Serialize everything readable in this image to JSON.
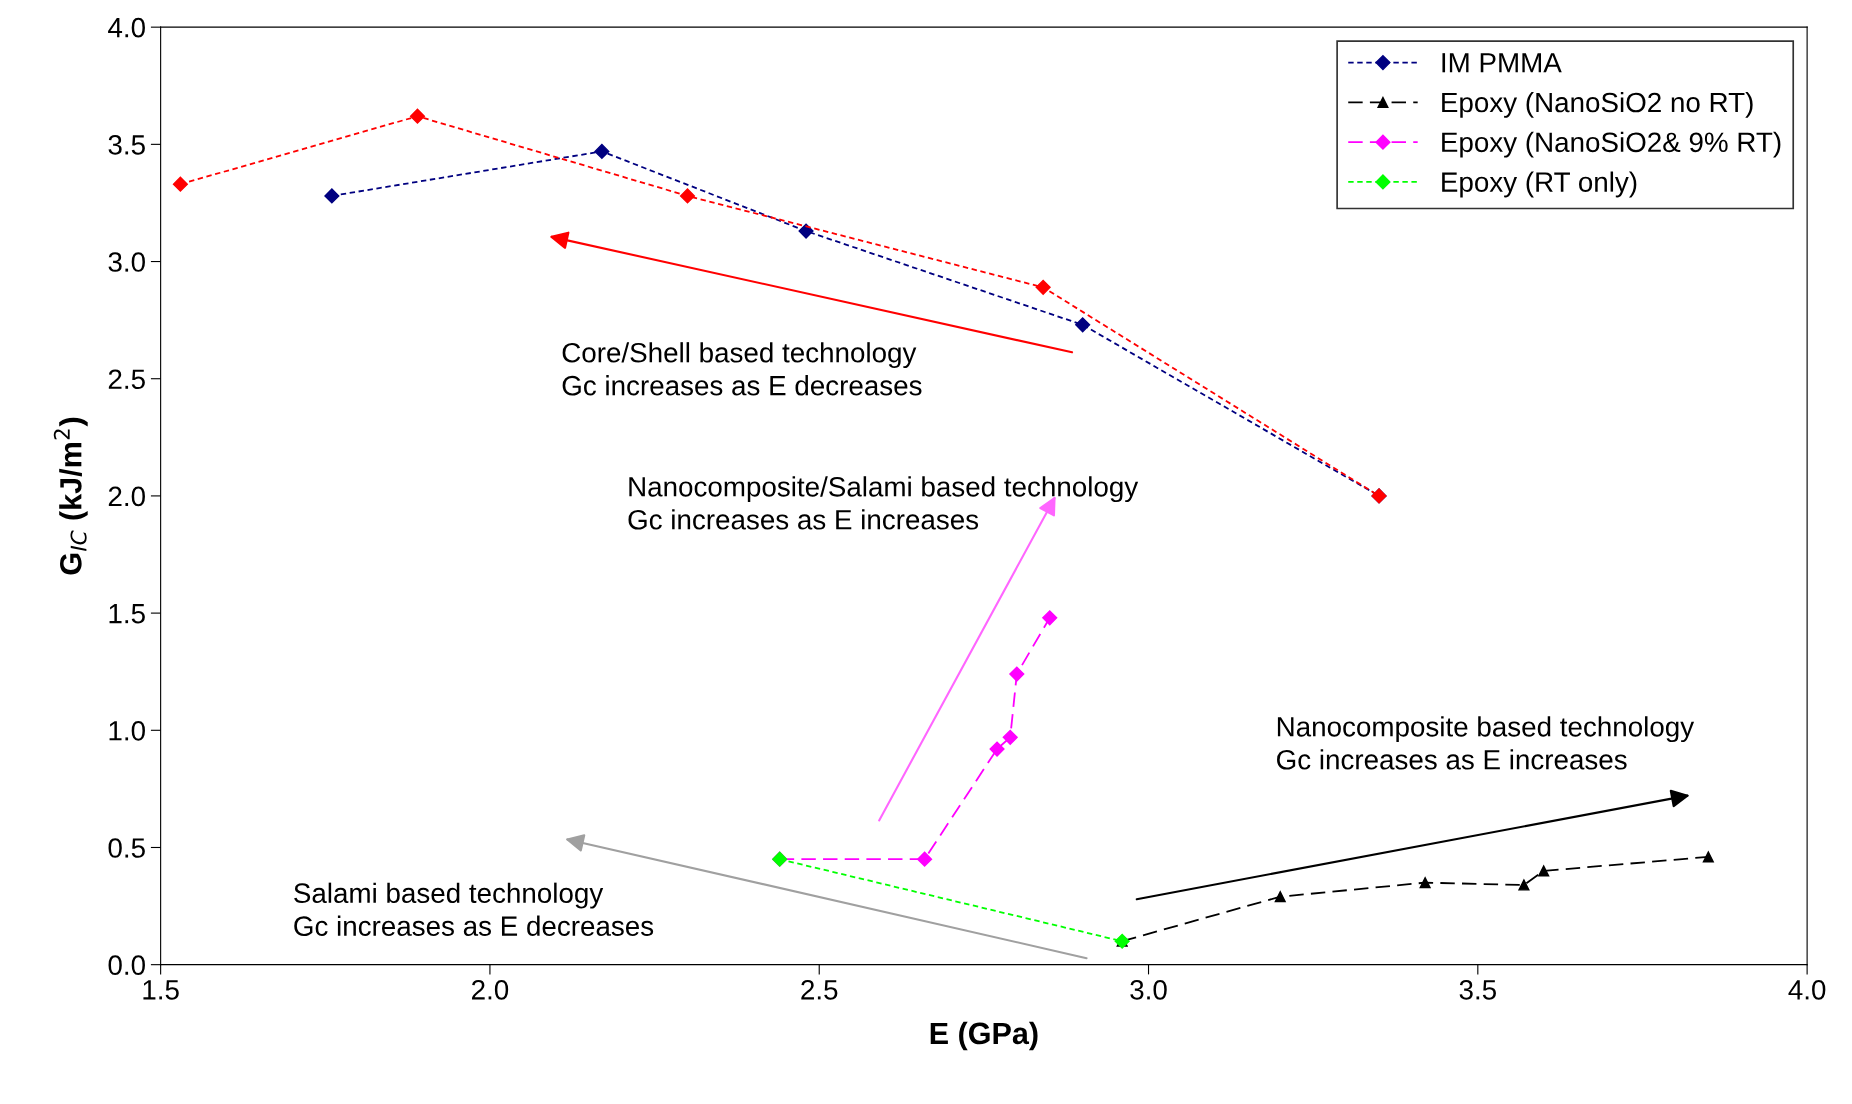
{
  "chart_data": {
    "type": "line",
    "xlabel": "E (GPa)",
    "ylabel": "G$_{IC}$ (kJ/m$^{2}$)",
    "xlim": [
      1.5,
      4.0
    ],
    "xticks": [
      {
        "value": 1.5,
        "label": "1.5"
      },
      {
        "value": 2.0,
        "label": "2.0"
      },
      {
        "value": 2.5,
        "label": "2.5"
      },
      {
        "value": 3.0,
        "label": "3.0"
      },
      {
        "value": 3.5,
        "label": "3.5"
      },
      {
        "value": 4.0,
        "label": "4.0"
      }
    ],
    "ylim": [
      0,
      4.0
    ],
    "yticks": [
      {
        "value": 0,
        "label": "0.0"
      },
      {
        "value": 0.5,
        "label": "0.5"
      },
      {
        "value": 1.0,
        "label": "1.0"
      },
      {
        "value": 1.5,
        "label": "1.5"
      },
      {
        "value": 2.0,
        "label": "2.0"
      },
      {
        "value": 2.5,
        "label": "2.5"
      },
      {
        "value": 3.0,
        "label": "3.0"
      },
      {
        "value": 3.5,
        "label": "3.5"
      },
      {
        "value": 4.0,
        "label": "4.0"
      }
    ],
    "grid": false,
    "legend": "top right",
    "series": [
      {
        "name": "IM PMMA",
        "color": "#000080",
        "marker": "diamond",
        "line_style": "dotted",
        "x": [
          1.76,
          2.17,
          2.48,
          2.9,
          3.35
        ],
        "values": [
          3.28,
          3.47,
          3.13,
          2.73,
          2.0
        ]
      },
      {
        "color": "#ff0000",
        "marker": "diamond",
        "line_style": "dotted",
        "x": [
          1.53,
          1.89,
          2.3,
          2.84,
          3.35
        ],
        "values": [
          3.33,
          3.62,
          3.28,
          2.89,
          2.0
        ]
      },
      {
        "name": "Epoxy (NanoSiO2 no RT)",
        "color": "#000000",
        "marker": "triangle",
        "line_style": "dashed",
        "x": [
          2.96,
          3.2,
          3.42,
          3.57,
          3.6,
          3.85
        ],
        "values": [
          0.1,
          0.29,
          0.35,
          0.34,
          0.4,
          0.46
        ]
      },
      {
        "name": "Epoxy (NanoSiO2& 9% RT)",
        "color": "#ff00ff",
        "marker": "diamond",
        "line_style": "dashed",
        "x": [
          2.44,
          2.66,
          2.77,
          2.79,
          2.8,
          2.85
        ],
        "values": [
          0.45,
          0.45,
          0.92,
          0.97,
          1.24,
          1.48
        ]
      },
      {
        "name": "Epoxy (RT only)",
        "color": "#00ff00",
        "marker": "diamond",
        "line_style": "dotted",
        "x": [
          2.44,
          2.96
        ],
        "values": [
          0.45,
          0.1
        ]
      }
    ],
    "annotations": [
      "Core/Shell based technology\nGc increases as E decreases",
      "Nanocomposite/Salami based technology\nGc increases as E increases",
      "Nanocomposite based technology\nGc increases as E increases",
      "Salami based technology\nGc increases as E decreases"
    ]
  }
}
